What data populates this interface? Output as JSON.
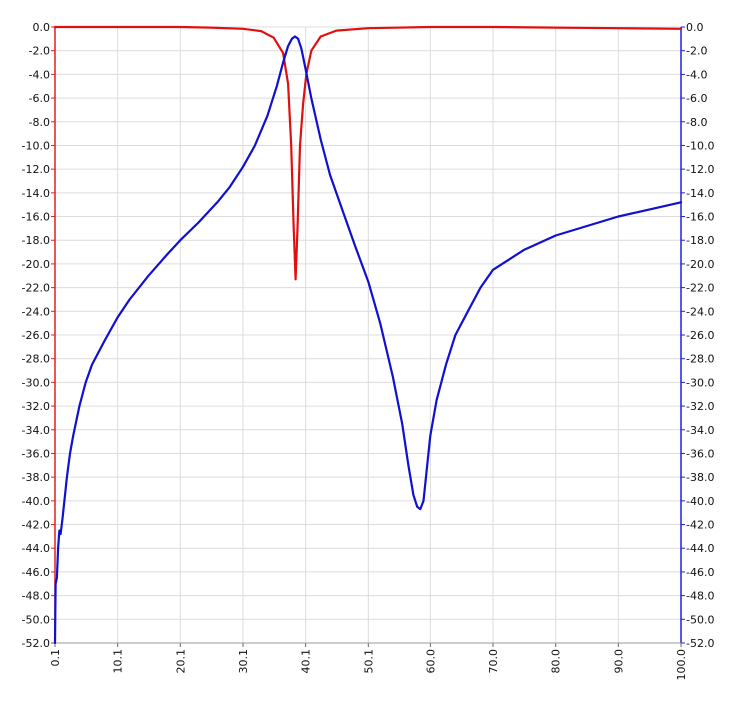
{
  "chart_data": {
    "type": "line",
    "title": "",
    "xlabel": "",
    "ylabel": "",
    "xlim": [
      0.1,
      100.0
    ],
    "ylim": [
      -52.0,
      0.0
    ],
    "grid": true,
    "x_ticks": [
      "0.1",
      "10.1",
      "20.1",
      "30.1",
      "40.1",
      "50.1",
      "60.0",
      "70.0",
      "80.0",
      "90.0",
      "100.0"
    ],
    "y_ticks": [
      "0.0",
      "-2.0",
      "-4.0",
      "-6.0",
      "-8.0",
      "-10.0",
      "-12.0",
      "-14.0",
      "-16.0",
      "-18.0",
      "-20.0",
      "-22.0",
      "-24.0",
      "-26.0",
      "-28.0",
      "-30.0",
      "-32.0",
      "-34.0",
      "-36.0",
      "-38.0",
      "-40.0",
      "-42.0",
      "-44.0",
      "-46.0",
      "-48.0",
      "-50.0",
      "-52.0"
    ],
    "left_axis_color": "#e02020",
    "right_axis_color": "#2020e0",
    "series": [
      {
        "color": "#e01010",
        "axis": "left",
        "x": [
          0.1,
          10.1,
          20.1,
          25.0,
          30.1,
          33.0,
          35.0,
          36.5,
          37.3,
          37.8,
          38.2,
          38.5,
          38.8,
          39.2,
          39.7,
          40.2,
          41.0,
          42.5,
          45.0,
          50.1,
          60.0,
          70.0,
          80.0,
          90.0,
          100.0
        ],
        "values": [
          0.0,
          0.0,
          0.0,
          -0.05,
          -0.15,
          -0.35,
          -0.9,
          -2.2,
          -4.8,
          -10.0,
          -17.0,
          -21.3,
          -17.0,
          -10.0,
          -6.5,
          -4.0,
          -2.0,
          -0.8,
          -0.3,
          -0.1,
          0.0,
          0.0,
          -0.05,
          -0.1,
          -0.15
        ]
      },
      {
        "color": "#1010d0",
        "axis": "right",
        "x": [
          0.1,
          0.2,
          0.4,
          0.6,
          0.8,
          1.0,
          1.3,
          1.6,
          2.0,
          2.5,
          3.0,
          4.0,
          5.0,
          6.0,
          8.0,
          10.1,
          12.0,
          15.0,
          18.0,
          20.1,
          23.0,
          26.0,
          28.0,
          30.1,
          32.0,
          34.0,
          35.5,
          36.5,
          37.3,
          37.9,
          38.4,
          38.9,
          39.4,
          40.0,
          41.0,
          42.5,
          44.0,
          46.0,
          48.0,
          50.1,
          52.0,
          54.0,
          55.5,
          56.5,
          57.3,
          57.9,
          58.4,
          58.9,
          59.5,
          60.0,
          61.0,
          62.5,
          64.0,
          66.0,
          68.0,
          70.0,
          75.0,
          80.0,
          85.0,
          90.0,
          95.0,
          100.0
        ],
        "values": [
          -52.0,
          -47.0,
          -46.5,
          -44.0,
          -42.5,
          -42.8,
          -41.5,
          -40.0,
          -38.0,
          -36.0,
          -34.5,
          -32.0,
          -30.0,
          -28.5,
          -26.5,
          -24.5,
          -23.0,
          -21.0,
          -19.2,
          -18.0,
          -16.5,
          -14.8,
          -13.5,
          -11.8,
          -10.0,
          -7.5,
          -5.0,
          -3.0,
          -1.6,
          -1.0,
          -0.8,
          -1.0,
          -1.8,
          -3.3,
          -6.0,
          -9.5,
          -12.5,
          -15.5,
          -18.5,
          -21.5,
          -25.0,
          -29.5,
          -33.5,
          -37.0,
          -39.5,
          -40.5,
          -40.7,
          -40.0,
          -37.0,
          -34.5,
          -31.5,
          -28.5,
          -26.0,
          -24.0,
          -22.0,
          -20.5,
          -18.8,
          -17.6,
          -16.8,
          -16.0,
          -15.4,
          -14.8
        ]
      }
    ]
  }
}
